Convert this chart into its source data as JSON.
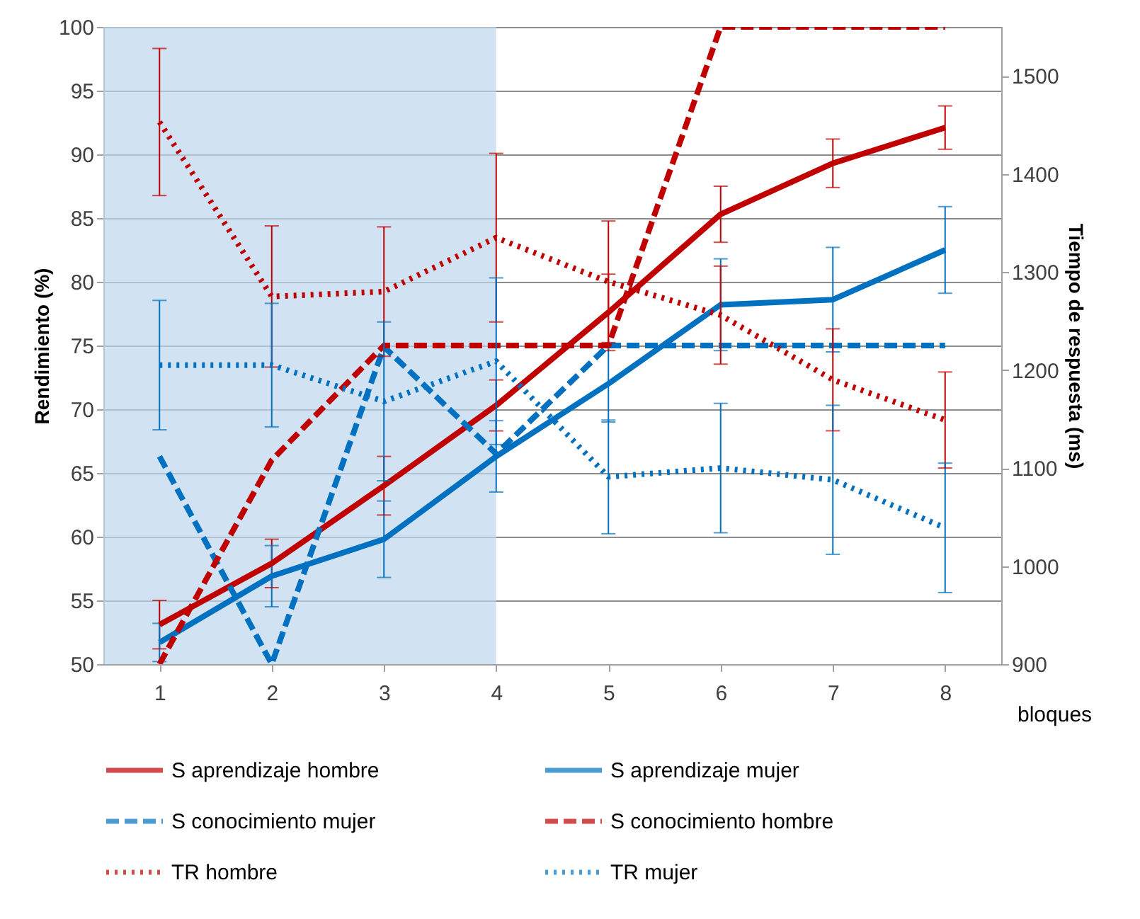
{
  "chart_data": {
    "type": "line",
    "xlabel": "bloques",
    "ylabel": "Rendimiento (%)",
    "y2label": "Tiempo de respuesta (ms)",
    "x": [
      1,
      2,
      3,
      4,
      5,
      6,
      7,
      8
    ],
    "xlim": [
      0.5,
      8.5
    ],
    "xticks": [
      1,
      2,
      3,
      4,
      5,
      6,
      7,
      8
    ],
    "ylim": [
      50,
      100
    ],
    "yticks": [
      50,
      55,
      60,
      65,
      70,
      75,
      80,
      85,
      90,
      95,
      100
    ],
    "y2lim": [
      900,
      1550
    ],
    "y2ticks": [
      900,
      1000,
      1100,
      1200,
      1300,
      1400,
      1500
    ],
    "grid": "y",
    "legend": "bottom",
    "marker": "none",
    "bands": [
      {
        "axis": "x",
        "from": 0.5,
        "to": 4,
        "color": "#bdd7ee"
      }
    ],
    "series": [
      {
        "name": "S aprendizaje hombre",
        "color": "#c00000",
        "line_style": "solid",
        "values": [
          53.1,
          57.9,
          64.0,
          70.3,
          77.6,
          85.3,
          89.3,
          92.1
        ],
        "errors": [
          1.9,
          1.9,
          2.3,
          2,
          3,
          2.2,
          1.9,
          1.7
        ]
      },
      {
        "name": "S aprendizaje mujer",
        "color": "#0070c0",
        "line_style": "solid",
        "values": [
          51.7,
          56.9,
          59.8,
          66.3,
          72.0,
          78.2,
          78.6,
          82.5
        ],
        "errors": [
          1.5,
          2.4,
          3,
          2.8,
          3,
          3.6,
          4.1,
          3.4
        ]
      },
      {
        "name": "S conocimiento mujer",
        "color": "#0070c0",
        "line_style": "dashed",
        "values": [
          66.3,
          50,
          74.9,
          66.5,
          75,
          75,
          75,
          75
        ]
      },
      {
        "name": "S conocimiento hombre",
        "color": "#c00000",
        "line_style": "dashed",
        "values": [
          50,
          66,
          75,
          75,
          75,
          100,
          100,
          100
        ]
      },
      {
        "name": "TR hombre",
        "color": "#c00000",
        "line_style": "dotted",
        "axis": "y2",
        "values": [
          1453,
          1275,
          1280,
          1335,
          1290,
          1256,
          1190,
          1149
        ],
        "errors": [
          75,
          72,
          66,
          86,
          62,
          50,
          52,
          49
        ]
      },
      {
        "name": "TR mujer",
        "color": "#0070c0",
        "line_style": "dotted",
        "axis": "y2",
        "values": [
          1205,
          1205,
          1168,
          1209,
          1091,
          1100,
          1088,
          1039
        ],
        "errors": [
          66,
          63,
          81,
          85,
          58,
          66,
          76,
          66
        ]
      }
    ]
  }
}
